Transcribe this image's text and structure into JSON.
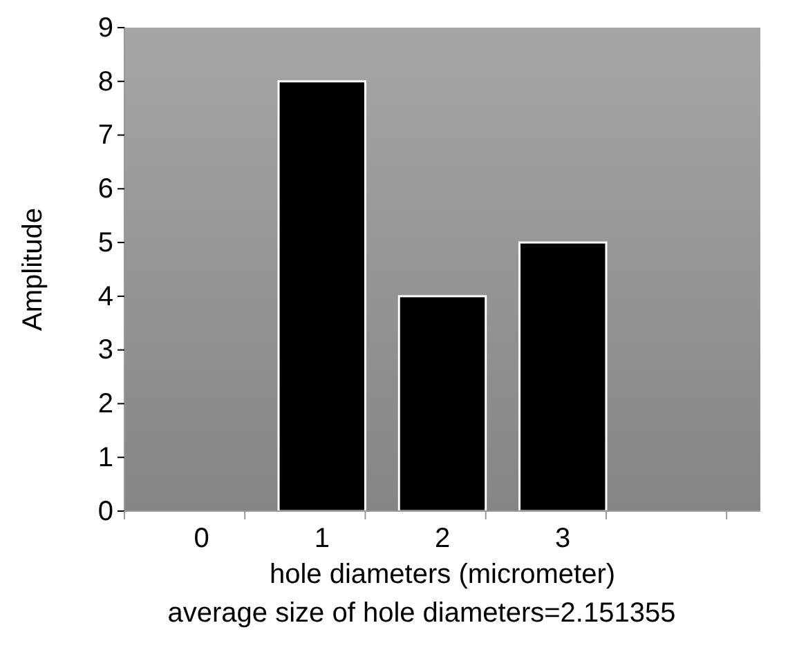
{
  "chart_data": {
    "type": "bar",
    "xlabel": "hole diameters (micrometer)",
    "ylabel": "Amplitude",
    "annotations": [
      "average size of hole diameters=2.151355"
    ],
    "categories": [
      "0",
      "1",
      "2",
      "3",
      null
    ],
    "values": [
      0,
      8,
      4,
      5,
      null
    ],
    "color": "#000000",
    "ylim": [
      0,
      9
    ],
    "yticks": [
      0,
      1,
      2,
      3,
      4,
      5,
      6,
      7,
      8,
      9
    ],
    "grid": false
  }
}
